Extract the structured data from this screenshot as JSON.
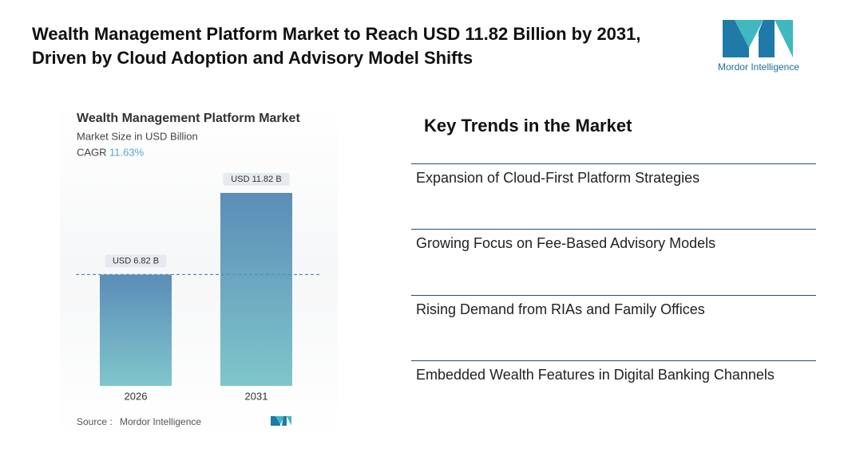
{
  "header": {
    "title": "Wealth Management Platform Market to Reach USD 11.82 Billion by 2031, Driven by Cloud Adoption and Advisory Model Shifts",
    "logo": "Mordor Intelligence"
  },
  "chart_data": {
    "type": "bar",
    "title": "Wealth Management Platform Market",
    "subtitle": "Market Size in USD Billion",
    "cagr_label": "CAGR",
    "cagr": "11.63%",
    "categories": [
      "2026",
      "2031"
    ],
    "values": [
      6.82,
      11.82
    ],
    "value_labels": [
      "USD 6.82 B",
      "USD 11.82 B"
    ],
    "color": "#6aa6c4",
    "source_label": "Source :",
    "source": "Mordor Intelligence"
  },
  "trends": {
    "title": "Key Trends in the Market",
    "items": [
      "Expansion of Cloud-First Platform Strategies",
      "Growing Focus on Fee-Based Advisory Models",
      "Rising Demand from RIAs and Family Offices",
      "Embedded Wealth Features in Digital Banking Channels"
    ]
  }
}
